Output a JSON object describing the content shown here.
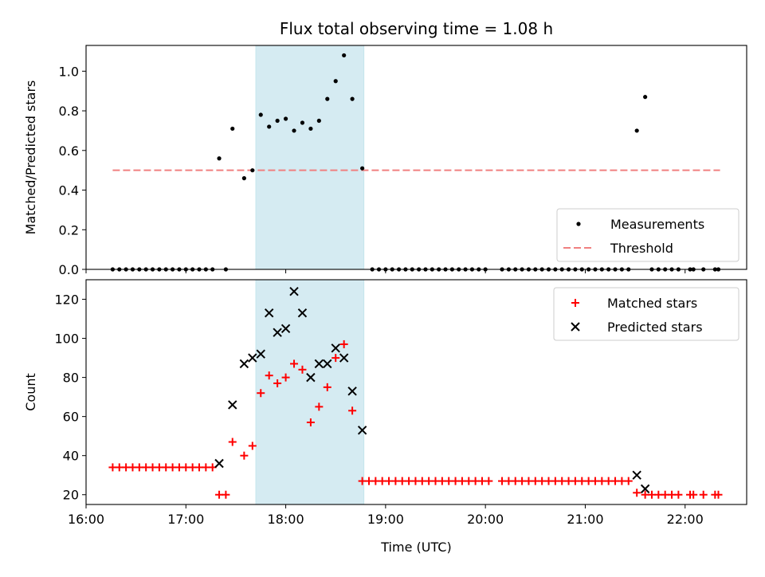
{
  "chart_data": [
    {
      "type": "scatter",
      "title": "Flux total observing time = 1.08 h",
      "xlabel": "",
      "ylabel": "Matched/Predicted stars",
      "xlim": [
        "16:00",
        "22:37"
      ],
      "ylim": [
        0.0,
        1.13
      ],
      "x_ticks": [
        "16:00",
        "17:00",
        "18:00",
        "19:00",
        "20:00",
        "21:00",
        "22:00"
      ],
      "y_ticks": [
        0.0,
        0.2,
        0.4,
        0.6,
        0.8,
        1.0
      ],
      "y_tick_labels": [
        "0.0",
        "0.2",
        "0.4",
        "0.6",
        "0.8",
        "1.0"
      ],
      "highlight_span": [
        "17:42",
        "18:47"
      ],
      "highlight_color": "#add8e6",
      "legend_position": "lower-right",
      "series": [
        {
          "name": "Measurements",
          "marker": "dot",
          "color": "#000000",
          "points": [
            [
              "16:16",
              0
            ],
            [
              "16:20",
              0
            ],
            [
              "16:24",
              0
            ],
            [
              "16:28",
              0
            ],
            [
              "16:32",
              0
            ],
            [
              "16:36",
              0
            ],
            [
              "16:40",
              0
            ],
            [
              "16:44",
              0
            ],
            [
              "16:48",
              0
            ],
            [
              "16:52",
              0
            ],
            [
              "16:56",
              0
            ],
            [
              "17:00",
              0
            ],
            [
              "17:04",
              0
            ],
            [
              "17:08",
              0
            ],
            [
              "17:12",
              0
            ],
            [
              "17:16",
              0
            ],
            [
              "17:20",
              0.56
            ],
            [
              "17:24",
              0
            ],
            [
              "17:28",
              0.71
            ],
            [
              "17:35",
              0.46
            ],
            [
              "17:40",
              0.5
            ],
            [
              "17:45",
              0.78
            ],
            [
              "17:50",
              0.72
            ],
            [
              "17:55",
              0.75
            ],
            [
              "18:00",
              0.76
            ],
            [
              "18:05",
              0.7
            ],
            [
              "18:10",
              0.74
            ],
            [
              "18:15",
              0.71
            ],
            [
              "18:20",
              0.75
            ],
            [
              "18:25",
              0.86
            ],
            [
              "18:30",
              0.95
            ],
            [
              "18:35",
              1.08
            ],
            [
              "18:40",
              0.86
            ],
            [
              "18:46",
              0.51
            ],
            [
              "18:52",
              0
            ],
            [
              "18:56",
              0
            ],
            [
              "19:00",
              0
            ],
            [
              "19:04",
              0
            ],
            [
              "19:08",
              0
            ],
            [
              "19:12",
              0
            ],
            [
              "19:16",
              0
            ],
            [
              "19:20",
              0
            ],
            [
              "19:24",
              0
            ],
            [
              "19:28",
              0
            ],
            [
              "19:32",
              0
            ],
            [
              "19:36",
              0
            ],
            [
              "19:40",
              0
            ],
            [
              "19:44",
              0
            ],
            [
              "19:48",
              0
            ],
            [
              "19:52",
              0
            ],
            [
              "19:56",
              0
            ],
            [
              "20:00",
              0
            ],
            [
              "20:10",
              0
            ],
            [
              "20:14",
              0
            ],
            [
              "20:18",
              0
            ],
            [
              "20:22",
              0
            ],
            [
              "20:26",
              0
            ],
            [
              "20:30",
              0
            ],
            [
              "20:34",
              0
            ],
            [
              "20:38",
              0
            ],
            [
              "20:42",
              0
            ],
            [
              "20:46",
              0
            ],
            [
              "20:50",
              0
            ],
            [
              "20:54",
              0
            ],
            [
              "20:58",
              0
            ],
            [
              "21:02",
              0
            ],
            [
              "21:06",
              0
            ],
            [
              "21:10",
              0
            ],
            [
              "21:14",
              0
            ],
            [
              "21:18",
              0
            ],
            [
              "21:22",
              0
            ],
            [
              "21:26",
              0
            ],
            [
              "21:31",
              0.7
            ],
            [
              "21:36",
              0.87
            ],
            [
              "21:40",
              0
            ],
            [
              "21:44",
              0
            ],
            [
              "21:48",
              0
            ],
            [
              "21:52",
              0
            ],
            [
              "21:56",
              0
            ],
            [
              "22:03",
              0
            ],
            [
              "22:05",
              0
            ],
            [
              "22:11",
              0
            ],
            [
              "22:18",
              0
            ],
            [
              "22:20",
              0
            ]
          ]
        },
        {
          "name": "Threshold",
          "marker": "dashed-line",
          "color": "#f08080",
          "points": [
            [
              "16:16",
              0.5
            ],
            [
              "22:21",
              0.5
            ]
          ]
        }
      ]
    },
    {
      "type": "scatter",
      "title": "",
      "xlabel": "Time (UTC)",
      "ylabel": "Count",
      "xlim": [
        "16:00",
        "22:37"
      ],
      "ylim": [
        15,
        130
      ],
      "x_ticks": [
        "16:00",
        "17:00",
        "18:00",
        "19:00",
        "20:00",
        "21:00",
        "22:00"
      ],
      "y_ticks": [
        20,
        40,
        60,
        80,
        100,
        120
      ],
      "y_tick_labels": [
        "20",
        "40",
        "60",
        "80",
        "100",
        "120"
      ],
      "highlight_span": [
        "17:42",
        "18:47"
      ],
      "highlight_color": "#add8e6",
      "legend_position": "upper-right",
      "series": [
        {
          "name": "Matched stars",
          "marker": "plus",
          "color": "#ff0000",
          "points": [
            [
              "16:16",
              34
            ],
            [
              "16:20",
              34
            ],
            [
              "16:24",
              34
            ],
            [
              "16:28",
              34
            ],
            [
              "16:32",
              34
            ],
            [
              "16:36",
              34
            ],
            [
              "16:40",
              34
            ],
            [
              "16:44",
              34
            ],
            [
              "16:48",
              34
            ],
            [
              "16:52",
              34
            ],
            [
              "16:56",
              34
            ],
            [
              "17:00",
              34
            ],
            [
              "17:04",
              34
            ],
            [
              "17:08",
              34
            ],
            [
              "17:12",
              34
            ],
            [
              "17:16",
              34
            ],
            [
              "17:20",
              20
            ],
            [
              "17:24",
              20
            ],
            [
              "17:28",
              47
            ],
            [
              "17:35",
              40
            ],
            [
              "17:40",
              45
            ],
            [
              "17:45",
              72
            ],
            [
              "17:50",
              81
            ],
            [
              "17:55",
              77
            ],
            [
              "18:00",
              80
            ],
            [
              "18:05",
              87
            ],
            [
              "18:10",
              84
            ],
            [
              "18:15",
              57
            ],
            [
              "18:20",
              65
            ],
            [
              "18:25",
              75
            ],
            [
              "18:30",
              90
            ],
            [
              "18:35",
              97
            ],
            [
              "18:40",
              63
            ],
            [
              "18:46",
              27
            ],
            [
              "18:50",
              27
            ],
            [
              "18:54",
              27
            ],
            [
              "18:58",
              27
            ],
            [
              "19:02",
              27
            ],
            [
              "19:06",
              27
            ],
            [
              "19:10",
              27
            ],
            [
              "19:14",
              27
            ],
            [
              "19:18",
              27
            ],
            [
              "19:22",
              27
            ],
            [
              "19:26",
              27
            ],
            [
              "19:30",
              27
            ],
            [
              "19:34",
              27
            ],
            [
              "19:38",
              27
            ],
            [
              "19:42",
              27
            ],
            [
              "19:46",
              27
            ],
            [
              "19:50",
              27
            ],
            [
              "19:54",
              27
            ],
            [
              "19:58",
              27
            ],
            [
              "20:02",
              27
            ],
            [
              "20:10",
              27
            ],
            [
              "20:14",
              27
            ],
            [
              "20:18",
              27
            ],
            [
              "20:22",
              27
            ],
            [
              "20:26",
              27
            ],
            [
              "20:30",
              27
            ],
            [
              "20:34",
              27
            ],
            [
              "20:38",
              27
            ],
            [
              "20:42",
              27
            ],
            [
              "20:46",
              27
            ],
            [
              "20:50",
              27
            ],
            [
              "20:54",
              27
            ],
            [
              "20:58",
              27
            ],
            [
              "21:02",
              27
            ],
            [
              "21:06",
              27
            ],
            [
              "21:10",
              27
            ],
            [
              "21:14",
              27
            ],
            [
              "21:18",
              27
            ],
            [
              "21:22",
              27
            ],
            [
              "21:26",
              27
            ],
            [
              "21:31",
              21
            ],
            [
              "21:36",
              20
            ],
            [
              "21:40",
              20
            ],
            [
              "21:44",
              20
            ],
            [
              "21:48",
              20
            ],
            [
              "21:52",
              20
            ],
            [
              "21:56",
              20
            ],
            [
              "22:03",
              20
            ],
            [
              "22:05",
              20
            ],
            [
              "22:11",
              20
            ],
            [
              "22:18",
              20
            ],
            [
              "22:20",
              20
            ]
          ]
        },
        {
          "name": "Predicted stars",
          "marker": "x",
          "color": "#000000",
          "points": [
            [
              "17:20",
              36
            ],
            [
              "17:28",
              66
            ],
            [
              "17:35",
              87
            ],
            [
              "17:40",
              90
            ],
            [
              "17:45",
              92
            ],
            [
              "17:50",
              113
            ],
            [
              "17:55",
              103
            ],
            [
              "18:00",
              105
            ],
            [
              "18:05",
              124
            ],
            [
              "18:10",
              113
            ],
            [
              "18:15",
              80
            ],
            [
              "18:20",
              87
            ],
            [
              "18:25",
              87
            ],
            [
              "18:30",
              95
            ],
            [
              "18:35",
              90
            ],
            [
              "18:40",
              73
            ],
            [
              "18:46",
              53
            ],
            [
              "21:31",
              30
            ],
            [
              "21:36",
              23
            ]
          ]
        }
      ]
    }
  ]
}
